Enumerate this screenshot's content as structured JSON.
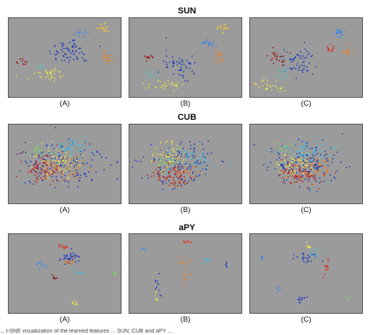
{
  "chart_data": [
    {
      "type": "scatter",
      "title": "SUN",
      "panels": [
        {
          "label": "(A)",
          "background": "#9b9b9b",
          "clusters": [
            {
              "color": "#1f3fbf",
              "center": [
                0.55,
                0.42
              ],
              "spread": [
                0.16,
                0.14
              ],
              "count": 70
            },
            {
              "color": "#e8e04a",
              "center": [
                0.36,
                0.72
              ],
              "spread": [
                0.12,
                0.08
              ],
              "count": 35
            },
            {
              "color": "#f07a18",
              "center": [
                0.88,
                0.5
              ],
              "spread": [
                0.05,
                0.08
              ],
              "count": 20
            },
            {
              "color": "#f2c23a",
              "center": [
                0.84,
                0.12
              ],
              "spread": [
                0.06,
                0.06
              ],
              "count": 20
            },
            {
              "color": "#3f88e6",
              "center": [
                0.66,
                0.2
              ],
              "spread": [
                0.06,
                0.06
              ],
              "count": 16
            },
            {
              "color": "#9c1616",
              "center": [
                0.12,
                0.55
              ],
              "spread": [
                0.05,
                0.04
              ],
              "count": 10
            },
            {
              "color": "#4fc3c3",
              "center": [
                0.3,
                0.62
              ],
              "spread": [
                0.05,
                0.04
              ],
              "count": 8
            }
          ]
        },
        {
          "label": "(B)",
          "background": "#9b9b9b",
          "clusters": [
            {
              "color": "#1f3fbf",
              "center": [
                0.45,
                0.6
              ],
              "spread": [
                0.13,
                0.14
              ],
              "count": 55
            },
            {
              "color": "#e8e04a",
              "center": [
                0.3,
                0.85
              ],
              "spread": [
                0.12,
                0.05
              ],
              "count": 30
            },
            {
              "color": "#3f88e6",
              "center": [
                0.72,
                0.32
              ],
              "spread": [
                0.06,
                0.06
              ],
              "count": 20
            },
            {
              "color": "#f2c23a",
              "center": [
                0.84,
                0.12
              ],
              "spread": [
                0.04,
                0.06
              ],
              "count": 16
            },
            {
              "color": "#f07a18",
              "center": [
                0.8,
                0.5
              ],
              "spread": [
                0.05,
                0.06
              ],
              "count": 16
            },
            {
              "color": "#9c1616",
              "center": [
                0.18,
                0.5
              ],
              "spread": [
                0.05,
                0.04
              ],
              "count": 12
            },
            {
              "color": "#4fc3c3",
              "center": [
                0.2,
                0.72
              ],
              "spread": [
                0.05,
                0.05
              ],
              "count": 12
            }
          ]
        },
        {
          "label": "(C)",
          "background": "#9b9b9b",
          "clusters": [
            {
              "color": "#1f3fbf",
              "center": [
                0.42,
                0.55
              ],
              "spread": [
                0.12,
                0.14
              ],
              "count": 60
            },
            {
              "color": "#9c1616",
              "center": [
                0.24,
                0.5
              ],
              "spread": [
                0.07,
                0.09
              ],
              "count": 25
            },
            {
              "color": "#e8e04a",
              "center": [
                0.18,
                0.85
              ],
              "spread": [
                0.1,
                0.06
              ],
              "count": 28
            },
            {
              "color": "#4fc3c3",
              "center": [
                0.3,
                0.7
              ],
              "spread": [
                0.06,
                0.06
              ],
              "count": 14
            },
            {
              "color": "#3f88e6",
              "center": [
                0.8,
                0.18
              ],
              "spread": [
                0.05,
                0.05
              ],
              "count": 22
            },
            {
              "color": "#d9332a",
              "center": [
                0.72,
                0.38
              ],
              "spread": [
                0.04,
                0.05
              ],
              "count": 14
            },
            {
              "color": "#f07a18",
              "center": [
                0.87,
                0.42
              ],
              "spread": [
                0.05,
                0.05
              ],
              "count": 16
            }
          ]
        }
      ]
    },
    {
      "type": "scatter",
      "title": "CUB",
      "panels": [
        {
          "label": "(A)",
          "background": "#9b9b9b",
          "clusters": [
            {
              "color": "#1f3fbf",
              "center": [
                0.5,
                0.5
              ],
              "spread": [
                0.28,
                0.24
              ],
              "count": 150
            },
            {
              "color": "#c01e1e",
              "center": [
                0.3,
                0.55
              ],
              "spread": [
                0.16,
                0.16
              ],
              "count": 90
            },
            {
              "color": "#e8e04a",
              "center": [
                0.45,
                0.45
              ],
              "spread": [
                0.16,
                0.16
              ],
              "count": 75
            },
            {
              "color": "#3fbfe0",
              "center": [
                0.55,
                0.3
              ],
              "spread": [
                0.16,
                0.12
              ],
              "count": 60
            },
            {
              "color": "#f07a18",
              "center": [
                0.55,
                0.55
              ],
              "spread": [
                0.15,
                0.15
              ],
              "count": 40
            },
            {
              "color": "#7fd06a",
              "center": [
                0.25,
                0.35
              ],
              "spread": [
                0.08,
                0.07
              ],
              "count": 20
            }
          ]
        },
        {
          "label": "(B)",
          "background": "#9b9b9b",
          "clusters": [
            {
              "color": "#1f3fbf",
              "center": [
                0.48,
                0.5
              ],
              "spread": [
                0.26,
                0.26
              ],
              "count": 140
            },
            {
              "color": "#c01e1e",
              "center": [
                0.4,
                0.65
              ],
              "spread": [
                0.15,
                0.13
              ],
              "count": 80
            },
            {
              "color": "#e8e04a",
              "center": [
                0.35,
                0.4
              ],
              "spread": [
                0.14,
                0.14
              ],
              "count": 60
            },
            {
              "color": "#3fbfe0",
              "center": [
                0.55,
                0.45
              ],
              "spread": [
                0.18,
                0.16
              ],
              "count": 60
            },
            {
              "color": "#f07a18",
              "center": [
                0.5,
                0.6
              ],
              "spread": [
                0.14,
                0.14
              ],
              "count": 40
            },
            {
              "color": "#7fd06a",
              "center": [
                0.3,
                0.5
              ],
              "spread": [
                0.08,
                0.08
              ],
              "count": 20
            }
          ]
        },
        {
          "label": "(C)",
          "background": "#9b9b9b",
          "clusters": [
            {
              "color": "#1f3fbf",
              "center": [
                0.5,
                0.5
              ],
              "spread": [
                0.26,
                0.22
              ],
              "count": 170
            },
            {
              "color": "#c01e1e",
              "center": [
                0.45,
                0.62
              ],
              "spread": [
                0.18,
                0.13
              ],
              "count": 90
            },
            {
              "color": "#e8e04a",
              "center": [
                0.4,
                0.5
              ],
              "spread": [
                0.14,
                0.12
              ],
              "count": 70
            },
            {
              "color": "#3fbfe0",
              "center": [
                0.5,
                0.35
              ],
              "spread": [
                0.2,
                0.14
              ],
              "count": 70
            },
            {
              "color": "#f07a18",
              "center": [
                0.55,
                0.55
              ],
              "spread": [
                0.15,
                0.12
              ],
              "count": 45
            },
            {
              "color": "#7fd06a",
              "center": [
                0.3,
                0.3
              ],
              "spread": [
                0.08,
                0.06
              ],
              "count": 15
            }
          ]
        }
      ]
    },
    {
      "type": "scatter",
      "title": "aPY",
      "panels": [
        {
          "label": "(A)",
          "background": "#9b9b9b",
          "clusters": [
            {
              "color": "#1f3fbf",
              "center": [
                0.55,
                0.3
              ],
              "spread": [
                0.08,
                0.08
              ],
              "count": 40
            },
            {
              "color": "#d9332a",
              "center": [
                0.48,
                0.15
              ],
              "spread": [
                0.04,
                0.04
              ],
              "count": 14
            },
            {
              "color": "#f07a18",
              "center": [
                0.55,
                0.35
              ],
              "spread": [
                0.04,
                0.04
              ],
              "count": 14
            },
            {
              "color": "#e8e04a",
              "center": [
                0.6,
                0.88
              ],
              "spread": [
                0.03,
                0.03
              ],
              "count": 10
            },
            {
              "color": "#3fbfe0",
              "center": [
                0.62,
                0.48
              ],
              "spread": [
                0.04,
                0.04
              ],
              "count": 12
            },
            {
              "color": "#7fd06a",
              "center": [
                0.95,
                0.5
              ],
              "spread": [
                0.02,
                0.03
              ],
              "count": 8
            },
            {
              "color": "#7a0f0f",
              "center": [
                0.4,
                0.55
              ],
              "spread": [
                0.02,
                0.03
              ],
              "count": 8
            },
            {
              "color": "#3f88e6",
              "center": [
                0.3,
                0.38
              ],
              "spread": [
                0.04,
                0.04
              ],
              "count": 12
            }
          ]
        },
        {
          "label": "(B)",
          "background": "#9b9b9b",
          "clusters": [
            {
              "color": "#1f3fbf",
              "center": [
                0.25,
                0.68
              ],
              "spread": [
                0.02,
                0.15
              ],
              "count": 18
            },
            {
              "color": "#f07a18",
              "center": [
                0.5,
                0.45
              ],
              "spread": [
                0.05,
                0.18
              ],
              "count": 18
            },
            {
              "color": "#d9332a",
              "center": [
                0.52,
                0.1
              ],
              "spread": [
                0.04,
                0.03
              ],
              "count": 8
            },
            {
              "color": "#3fbfe0",
              "center": [
                0.68,
                0.35
              ],
              "spread": [
                0.02,
                0.05
              ],
              "count": 8
            },
            {
              "color": "#e8e04a",
              "center": [
                0.24,
                0.7
              ],
              "spread": [
                0.01,
                0.12
              ],
              "count": 10
            },
            {
              "color": "#3f88e6",
              "center": [
                0.12,
                0.2
              ],
              "spread": [
                0.02,
                0.03
              ],
              "count": 6
            },
            {
              "color": "#1f3fbf",
              "center": [
                0.87,
                0.42
              ],
              "spread": [
                0.01,
                0.04
              ],
              "count": 5
            }
          ]
        },
        {
          "label": "(C)",
          "background": "#9b9b9b",
          "clusters": [
            {
              "color": "#1f3fbf",
              "center": [
                0.5,
                0.3
              ],
              "spread": [
                0.1,
                0.06
              ],
              "count": 25
            },
            {
              "color": "#3fbfe0",
              "center": [
                0.6,
                0.25
              ],
              "spread": [
                0.06,
                0.05
              ],
              "count": 12
            },
            {
              "color": "#d9332a",
              "center": [
                0.68,
                0.42
              ],
              "spread": [
                0.03,
                0.12
              ],
              "count": 14
            },
            {
              "color": "#1f3fbf",
              "center": [
                0.45,
                0.82
              ],
              "spread": [
                0.05,
                0.05
              ],
              "count": 12
            },
            {
              "color": "#e8e04a",
              "center": [
                0.52,
                0.15
              ],
              "spread": [
                0.03,
                0.03
              ],
              "count": 8
            },
            {
              "color": "#7fd06a",
              "center": [
                0.88,
                0.82
              ],
              "spread": [
                0.02,
                0.02
              ],
              "count": 5
            },
            {
              "color": "#3f88e6",
              "center": [
                0.25,
                0.7
              ],
              "spread": [
                0.02,
                0.03
              ],
              "count": 6
            },
            {
              "color": "#3f88e6",
              "center": [
                0.1,
                0.3
              ],
              "spread": [
                0.02,
                0.03
              ],
              "count": 6
            }
          ]
        }
      ]
    }
  ],
  "caption": "... t-SNE visualization of the learned features ... SUN, CUB and aPY ..."
}
